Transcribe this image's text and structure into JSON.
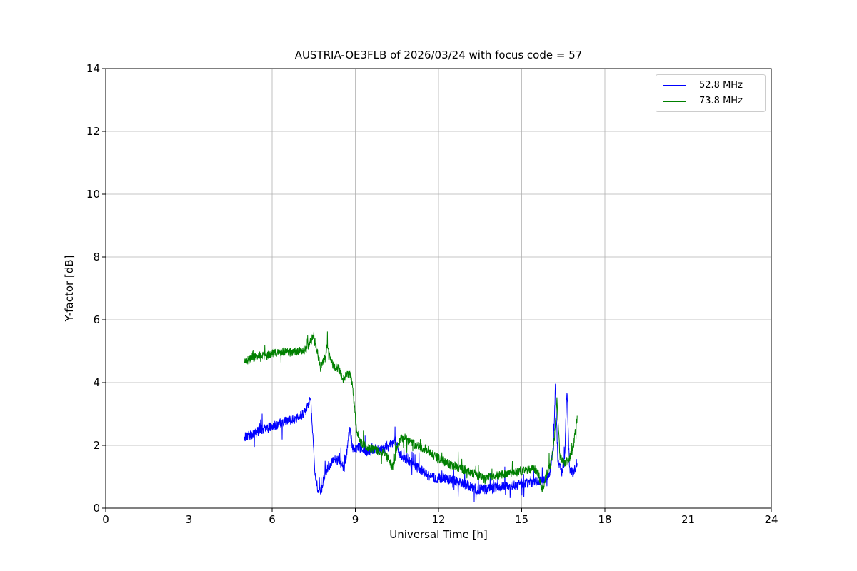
{
  "chart_data": {
    "type": "line",
    "title": "AUSTRIA-OE3FLB of 2026/03/24 with focus code = 57",
    "xlabel": "Universal Time [h]",
    "ylabel": "Y-factor [dB]",
    "xlim": [
      0,
      24
    ],
    "ylim": [
      0,
      14
    ],
    "xticks": [
      0,
      3,
      6,
      9,
      12,
      15,
      18,
      21,
      24
    ],
    "yticks": [
      0,
      2,
      4,
      6,
      8,
      10,
      12,
      14
    ],
    "grid": true,
    "grid_color": "#b0b0b0",
    "legend_position": "upper right",
    "x_range_of_data": [
      5.0,
      17.0
    ],
    "series": [
      {
        "name": "52.8 MHz",
        "color": "#0000ff",
        "noise": 0.16,
        "trend": [
          [
            5.0,
            2.25
          ],
          [
            5.3,
            2.35
          ],
          [
            5.6,
            2.5
          ],
          [
            6.0,
            2.6
          ],
          [
            6.3,
            2.7
          ],
          [
            6.6,
            2.8
          ],
          [
            6.85,
            2.85
          ],
          [
            7.0,
            2.95
          ],
          [
            7.2,
            3.05
          ],
          [
            7.3,
            3.3
          ],
          [
            7.38,
            3.55
          ],
          [
            7.45,
            2.6
          ],
          [
            7.55,
            1.0
          ],
          [
            7.65,
            0.6
          ],
          [
            7.75,
            0.5
          ],
          [
            7.85,
            0.9
          ],
          [
            8.0,
            1.3
          ],
          [
            8.2,
            1.55
          ],
          [
            8.4,
            1.5
          ],
          [
            8.6,
            1.3
          ],
          [
            8.72,
            2.0
          ],
          [
            8.8,
            2.55
          ],
          [
            8.9,
            1.9
          ],
          [
            9.1,
            1.95
          ],
          [
            9.4,
            1.8
          ],
          [
            9.7,
            1.85
          ],
          [
            10.0,
            1.9
          ],
          [
            10.3,
            2.05
          ],
          [
            10.45,
            2.2
          ],
          [
            10.6,
            1.7
          ],
          [
            10.8,
            1.6
          ],
          [
            11.0,
            1.45
          ],
          [
            11.3,
            1.25
          ],
          [
            11.6,
            1.05
          ],
          [
            11.9,
            0.95
          ],
          [
            12.2,
            0.95
          ],
          [
            12.5,
            0.9
          ],
          [
            12.8,
            0.8
          ],
          [
            13.1,
            0.7
          ],
          [
            13.4,
            0.6
          ],
          [
            13.7,
            0.6
          ],
          [
            14.0,
            0.65
          ],
          [
            14.3,
            0.7
          ],
          [
            14.6,
            0.7
          ],
          [
            14.9,
            0.75
          ],
          [
            15.2,
            0.8
          ],
          [
            15.5,
            0.85
          ],
          [
            15.8,
            0.9
          ],
          [
            16.0,
            1.05
          ],
          [
            16.15,
            2.0
          ],
          [
            16.22,
            4.0
          ],
          [
            16.3,
            1.6
          ],
          [
            16.45,
            1.1
          ],
          [
            16.55,
            1.6
          ],
          [
            16.63,
            3.85
          ],
          [
            16.72,
            1.3
          ],
          [
            16.85,
            1.1
          ],
          [
            17.0,
            1.5
          ]
        ]
      },
      {
        "name": "73.8 MHz",
        "color": "#008000",
        "noise": 0.14,
        "trend": [
          [
            5.0,
            4.65
          ],
          [
            5.2,
            4.75
          ],
          [
            5.5,
            4.85
          ],
          [
            5.8,
            4.85
          ],
          [
            6.1,
            4.95
          ],
          [
            6.4,
            5.0
          ],
          [
            6.7,
            4.95
          ],
          [
            7.0,
            5.0
          ],
          [
            7.2,
            5.05
          ],
          [
            7.4,
            5.3
          ],
          [
            7.5,
            5.55
          ],
          [
            7.6,
            5.1
          ],
          [
            7.75,
            4.45
          ],
          [
            7.9,
            4.8
          ],
          [
            8.0,
            5.2
          ],
          [
            8.1,
            4.7
          ],
          [
            8.25,
            4.5
          ],
          [
            8.4,
            4.45
          ],
          [
            8.55,
            4.1
          ],
          [
            8.7,
            4.3
          ],
          [
            8.85,
            4.2
          ],
          [
            8.95,
            3.4
          ],
          [
            9.05,
            2.4
          ],
          [
            9.2,
            2.1
          ],
          [
            9.4,
            1.95
          ],
          [
            9.7,
            1.85
          ],
          [
            10.0,
            1.8
          ],
          [
            10.2,
            1.55
          ],
          [
            10.35,
            1.3
          ],
          [
            10.5,
            1.9
          ],
          [
            10.65,
            2.25
          ],
          [
            10.9,
            2.15
          ],
          [
            11.2,
            2.0
          ],
          [
            11.5,
            1.9
          ],
          [
            11.8,
            1.7
          ],
          [
            12.1,
            1.55
          ],
          [
            12.4,
            1.4
          ],
          [
            12.7,
            1.3
          ],
          [
            13.0,
            1.2
          ],
          [
            13.3,
            1.1
          ],
          [
            13.6,
            1.0
          ],
          [
            13.9,
            1.0
          ],
          [
            14.2,
            1.05
          ],
          [
            14.5,
            1.1
          ],
          [
            14.8,
            1.15
          ],
          [
            15.1,
            1.2
          ],
          [
            15.4,
            1.3
          ],
          [
            15.6,
            1.1
          ],
          [
            15.75,
            0.6
          ],
          [
            15.9,
            1.1
          ],
          [
            16.05,
            1.4
          ],
          [
            16.18,
            2.2
          ],
          [
            16.27,
            3.45
          ],
          [
            16.38,
            1.6
          ],
          [
            16.55,
            1.45
          ],
          [
            16.7,
            1.55
          ],
          [
            16.85,
            1.9
          ],
          [
            17.0,
            2.85
          ]
        ]
      }
    ]
  }
}
